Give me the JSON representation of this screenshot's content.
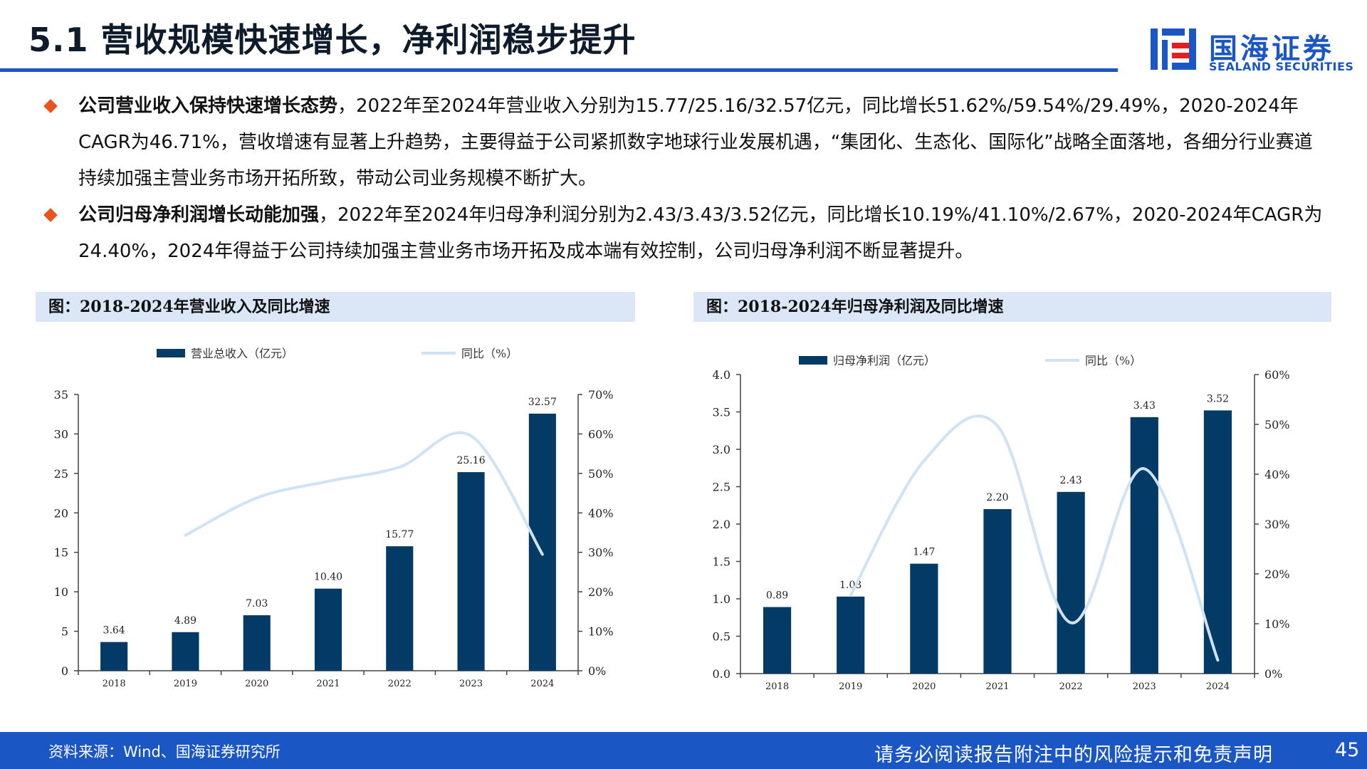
{
  "header": {
    "title": "5.1 营收规模快速增长，净利润稳步提升",
    "logo_cn": "国海证券",
    "logo_en": "SEALAND SECURITIES"
  },
  "bullets": [
    {
      "bold": "公司营业收入保持快速增长态势",
      "text": "，2022年至2024年营业收入分别为15.77/25.16/32.57亿元，同比增长51.62%/59.54%/29.49%，2020-2024年CAGR为46.71%，营收增速有显著上升趋势，主要得益于公司紧抓数字地球行业发展机遇，“集团化、生态化、国际化”战略全面落地，各细分行业赛道持续加强主营业务市场开拓所致，带动公司业务规模不断扩大。"
    },
    {
      "bold": "公司归母净利润增长动能加强",
      "text": "，2022年至2024年归母净利润分别为2.43/3.43/3.52亿元，同比增长10.19%/41.10%/2.67%，2020-2024年CAGR为24.40%，2024年得益于公司持续加强主营业务市场开拓及成本端有效控制，公司归母净利润不断显著提升。"
    }
  ],
  "captions": {
    "left": "图：2018-2024年营业收入及同比增速",
    "right": "图：2018-2024年归母净利润及同比增速"
  },
  "chart_data": [
    {
      "type": "bar",
      "categories": [
        "2018",
        "2019",
        "2020",
        "2021",
        "2022",
        "2023",
        "2024"
      ],
      "series": [
        {
          "name": "营业总收入（亿元）",
          "type": "bar",
          "axis": "left",
          "values": [
            3.64,
            4.89,
            7.03,
            10.4,
            15.77,
            25.16,
            32.57
          ],
          "labels": [
            "3.64",
            "4.89",
            "7.03",
            "10.40",
            "15.77",
            "25.16",
            "32.57"
          ]
        },
        {
          "name": "同比（%）",
          "type": "line",
          "axis": "right",
          "values": [
            null,
            34.3,
            43.8,
            48.0,
            51.6,
            59.5,
            29.5
          ]
        }
      ],
      "ylim": [
        0,
        35
      ],
      "yticks": [
        "0",
        "5",
        "10",
        "15",
        "20",
        "25",
        "30",
        "35"
      ],
      "y2lim": [
        0,
        70
      ],
      "y2ticks": [
        "0%",
        "10%",
        "20%",
        "30%",
        "40%",
        "50%",
        "60%",
        "70%"
      ],
      "legend": "top",
      "colors": {
        "bar": "#033a66",
        "line": "#cfe3f5"
      }
    },
    {
      "type": "bar",
      "categories": [
        "2018",
        "2019",
        "2020",
        "2021",
        "2022",
        "2023",
        "2024"
      ],
      "series": [
        {
          "name": "归母净利润（亿元）",
          "type": "bar",
          "axis": "left",
          "values": [
            0.89,
            1.03,
            1.47,
            2.2,
            2.43,
            3.43,
            3.52
          ],
          "labels": [
            "0.89",
            "1.03",
            "1.47",
            "2.20",
            "2.43",
            "3.43",
            "3.52"
          ]
        },
        {
          "name": "同比（%）",
          "type": "line",
          "axis": "right",
          "values": [
            null,
            15.7,
            42.7,
            49.7,
            10.2,
            41.1,
            2.7
          ]
        }
      ],
      "ylim": [
        0,
        4
      ],
      "yticks": [
        "0.0",
        "0.5",
        "1.0",
        "1.5",
        "2.0",
        "2.5",
        "3.0",
        "3.5",
        "4.0"
      ],
      "y2lim": [
        0,
        60
      ],
      "y2ticks": [
        "0%",
        "10%",
        "20%",
        "30%",
        "40%",
        "50%",
        "60%"
      ],
      "legend": "top",
      "colors": {
        "bar": "#033a66",
        "line": "#cfe3f5"
      }
    }
  ],
  "footer": {
    "source": "资料来源：Wind、国海证券研究所",
    "disclaimer": "请务必阅读报告附注中的风险提示和免责声明",
    "page": "45"
  }
}
